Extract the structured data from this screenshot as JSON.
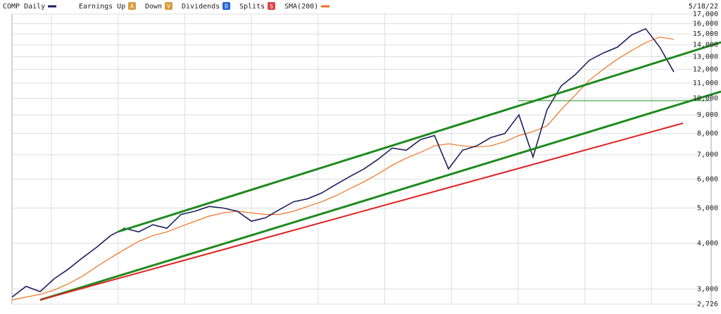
{
  "chart_data": {
    "type": "line",
    "title": "COMP Daily",
    "date": "5/18/22",
    "legend_items": [
      {
        "label": "Earnings Up",
        "icon": "A",
        "color": "#d89a3a"
      },
      {
        "label": "Down",
        "icon": "V",
        "color": "#d89a3a"
      },
      {
        "label": "Dividends",
        "icon": "D",
        "color": "#2266dd"
      },
      {
        "label": "Splits",
        "icon": "S",
        "color": "#dd4444"
      }
    ],
    "log_scale": true,
    "grid": true,
    "ylim": [
      2726,
      17000
    ],
    "yticks": [
      {
        "value": 2726,
        "label": "2,726"
      },
      {
        "value": 3000,
        "label": "3,000"
      },
      {
        "value": 4000,
        "label": "4,000"
      },
      {
        "value": 5000,
        "label": "5,000"
      },
      {
        "value": 6000,
        "label": "6,000"
      },
      {
        "value": 7000,
        "label": "7,000"
      },
      {
        "value": 8000,
        "label": "8,000"
      },
      {
        "value": 9000,
        "label": "9,000"
      },
      {
        "value": 10000,
        "label": "10,000"
      },
      {
        "value": 11000,
        "label": "11,000"
      },
      {
        "value": 12000,
        "label": "12,000"
      },
      {
        "value": 13000,
        "label": "13,000"
      },
      {
        "value": 14000,
        "label": "14,000"
      },
      {
        "value": 15000,
        "label": "15,000"
      },
      {
        "value": 16000,
        "label": "16,000"
      },
      {
        "value": 17000,
        "label": "17,000"
      }
    ],
    "series": [
      {
        "name": "COMP Daily",
        "color": "#1a1f5e",
        "values": [
          2850,
          3050,
          2950,
          3200,
          3400,
          3650,
          3900,
          4200,
          4400,
          4300,
          4500,
          4400,
          4800,
          4900,
          5050,
          5000,
          4900,
          4600,
          4700,
          4950,
          5200,
          5300,
          5500,
          5800,
          6100,
          6400,
          6800,
          7300,
          7200,
          7700,
          7900,
          6400,
          7200,
          7400,
          7800,
          8000,
          9000,
          6900,
          9300,
          10800,
          11600,
          12700,
          13300,
          13800,
          14900,
          15500,
          13800,
          11800
        ]
      },
      {
        "name": "SMA(200)",
        "color": "#f07020",
        "values": [
          2800,
          2850,
          2900,
          2980,
          3100,
          3250,
          3450,
          3650,
          3850,
          4050,
          4200,
          4300,
          4450,
          4600,
          4750,
          4850,
          4900,
          4850,
          4800,
          4800,
          4900,
          5050,
          5200,
          5400,
          5650,
          5900,
          6200,
          6550,
          6850,
          7100,
          7400,
          7500,
          7400,
          7350,
          7400,
          7600,
          7900,
          8100,
          8400,
          9300,
          10200,
          11200,
          12000,
          12800,
          13500,
          14200,
          14700,
          14500
        ]
      }
    ]
  }
}
